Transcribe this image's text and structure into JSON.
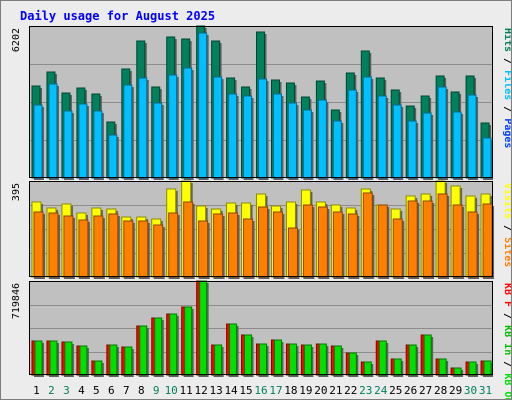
{
  "chart_data": {
    "type": "bar",
    "title": "Daily usage for August 2025",
    "categories": [
      "1",
      "2",
      "3",
      "4",
      "5",
      "6",
      "7",
      "8",
      "9",
      "10",
      "11",
      "12",
      "13",
      "14",
      "15",
      "16",
      "17",
      "18",
      "19",
      "20",
      "21",
      "22",
      "23",
      "24",
      "25",
      "26",
      "27",
      "28",
      "29",
      "30",
      "31"
    ],
    "weekend_days": [
      "2",
      "3",
      "9",
      "10",
      "16",
      "17",
      "23",
      "24",
      "30",
      "31"
    ],
    "colors": {
      "hits": "#00805c",
      "files": "#00c0ff",
      "pages": "#0040ff",
      "visits": "#ffff00",
      "sites": "#ff8000",
      "kb_in": "#00c000",
      "kb_out": "#00e000",
      "kb_f": "#ff0000",
      "title": "#0000ff",
      "plot_bg": "#c0c0c0",
      "weekday_label": "#000000",
      "weekend_label": "#00805c"
    },
    "panels": [
      {
        "id": "hits-files-pages",
        "max_label": "6202",
        "ymax": 6202,
        "legend": [
          {
            "text": "Hits",
            "color": "#00805c"
          },
          {
            "text": " / ",
            "color": "#000000"
          },
          {
            "text": "Files",
            "color": "#00c0ff"
          },
          {
            "text": " / ",
            "color": "#000000"
          },
          {
            "text": "Pages",
            "color": "#0040ff"
          }
        ],
        "series": [
          {
            "name": "Hits",
            "color": "#00805c",
            "values": [
              3750,
              4330,
              3460,
              3680,
              3430,
              2270,
              4450,
              5600,
              3710,
              5750,
              5670,
              6200,
              5590,
              4070,
              3710,
              5940,
              4010,
              3880,
              3320,
              3950,
              2790,
              4290,
              5180,
              4080,
              3590,
              2940,
              3360,
              4180,
              3500,
              4180,
              2250
            ]
          },
          {
            "name": "Files",
            "color": "#00c0ff",
            "values": [
              2960,
              3840,
              2740,
              3030,
              2720,
              1760,
              3780,
              4080,
              3040,
              4210,
              4490,
              5900,
              4140,
              3410,
              3350,
              4020,
              3410,
              3070,
              2780,
              3200,
              2330,
              3600,
              4120,
              3340,
              2980,
              2330,
              2670,
              3700,
              2700,
              3380,
              1630
            ]
          },
          {
            "name": "Pages",
            "color": "#0040ff",
            "values": [
              0,
              0,
              0,
              0,
              0,
              0,
              0,
              0,
              0,
              0,
              0,
              0,
              0,
              0,
              0,
              0,
              0,
              0,
              0,
              0,
              0,
              0,
              0,
              0,
              0,
              0,
              0,
              0,
              0,
              0,
              0
            ]
          }
        ]
      },
      {
        "id": "visits-sites",
        "max_label": "395",
        "ymax": 395,
        "legend": [
          {
            "text": "Visits",
            "color": "#ffff00"
          },
          {
            "text": " / ",
            "color": "#000000"
          },
          {
            "text": "Sites",
            "color": "#ff8000"
          }
        ],
        "series": [
          {
            "name": "Visits",
            "color": "#ffff00",
            "values": [
              307,
              285,
              299,
              263,
              283,
              280,
              247,
              245,
              238,
              363,
              395,
              291,
              281,
              305,
              304,
              341,
              293,
              307,
              358,
              308,
              296,
              284,
              363,
              296,
              280,
              335,
              342,
              395,
              375,
              333,
              341
            ]
          },
          {
            "name": "Sites",
            "color": "#ff8000",
            "values": [
              266,
              264,
              253,
              233,
              253,
              261,
              230,
              232,
              216,
              263,
              308,
              232,
              260,
              265,
              238,
              289,
              268,
              203,
              298,
              287,
              269,
              259,
              345,
              296,
              240,
              312,
              314,
              343,
              298,
              266,
              300
            ]
          }
        ]
      },
      {
        "id": "kbytes",
        "max_label": "719846",
        "ymax": 719846,
        "legend": [
          {
            "text": "KB F",
            "color": "#ff0000"
          },
          {
            "text": " / ",
            "color": "#000000"
          },
          {
            "text": "KB In",
            "color": "#00c000"
          },
          {
            "text": " / ",
            "color": "#000000"
          },
          {
            "text": "KB Out",
            "color": "#00e000"
          }
        ],
        "series": [
          {
            "name": "KB F",
            "color": "#ff0000",
            "values": [
              258000,
              257000,
              255000,
              222000,
              111000,
              227000,
              212000,
              373000,
              437000,
              470000,
              523000,
              719846,
              230000,
              390000,
              303000,
              240000,
              265000,
              235000,
              232000,
              240000,
              224000,
              172000,
              101000,
              258000,
              120000,
              227000,
              304000,
              126000,
              55000,
              96000,
              111000
            ]
          },
          {
            "name": "KB In",
            "color": "#00c000",
            "values": [
              0,
              0,
              0,
              0,
              0,
              0,
              0,
              0,
              0,
              0,
              0,
              0,
              0,
              0,
              0,
              0,
              0,
              0,
              0,
              0,
              0,
              0,
              0,
              0,
              0,
              0,
              0,
              0,
              0,
              0,
              0
            ]
          },
          {
            "name": "KB Out",
            "color": "#00e000",
            "values": [
              258000,
              257000,
              255000,
              222000,
              111000,
              227000,
              212000,
              373000,
              437000,
              470000,
              523000,
              719846,
              230000,
              390000,
              303000,
              240000,
              265000,
              235000,
              232000,
              240000,
              224000,
              172000,
              101000,
              258000,
              120000,
              227000,
              304000,
              126000,
              55000,
              96000,
              111000
            ]
          }
        ]
      }
    ]
  }
}
